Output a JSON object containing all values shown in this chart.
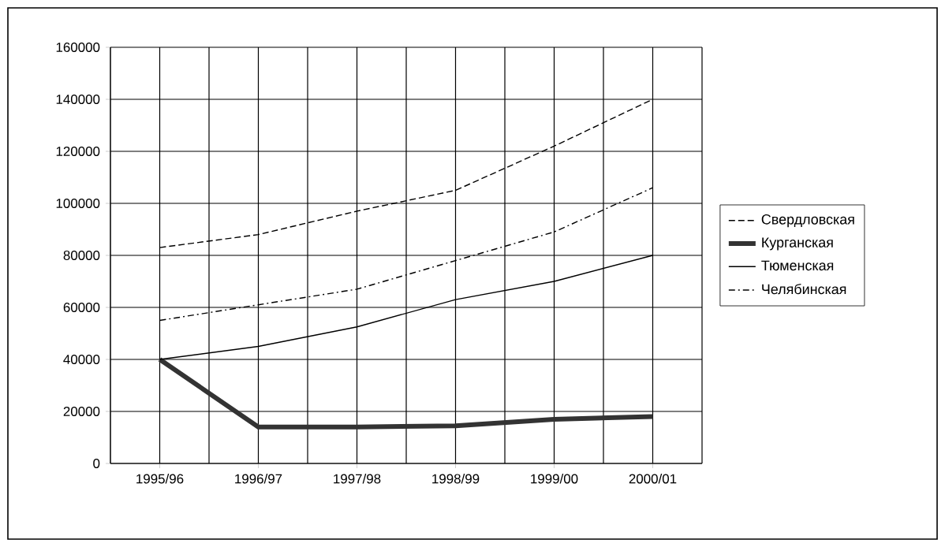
{
  "chart_data": {
    "type": "line",
    "categories": [
      "1995/96",
      "1996/97",
      "1997/98",
      "1998/99",
      "1999/00",
      "2000/01"
    ],
    "series": [
      {
        "name": "Свердловская",
        "color": "#000000",
        "line_style": "dashed",
        "values": [
          83000,
          88000,
          97000,
          105000,
          122000,
          140000
        ]
      },
      {
        "name": "Курганская",
        "color": "#333333",
        "line_style": "solid",
        "values": [
          40000,
          14000,
          14000,
          14500,
          17000,
          18000
        ]
      },
      {
        "name": "Тюменская",
        "color": "#000000",
        "line_style": "solid",
        "values": [
          40000,
          45000,
          52500,
          63000,
          70000,
          80000
        ]
      },
      {
        "name": "Челябинская",
        "color": "#000000",
        "line_style": "dashdot",
        "values": [
          55000,
          61000,
          67000,
          78000,
          89000,
          106000
        ]
      }
    ],
    "ylim": [
      0,
      160000
    ],
    "yticks": [
      0,
      20000,
      40000,
      60000,
      80000,
      100000,
      120000,
      140000,
      160000
    ],
    "grid": true,
    "legend": "right",
    "marker": "none"
  }
}
